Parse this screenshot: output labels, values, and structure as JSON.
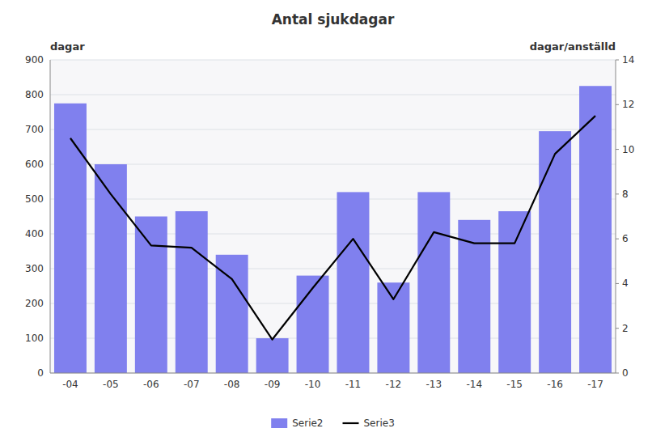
{
  "chart_data": {
    "type": "bar",
    "title": "Antal sjukdagar",
    "categories": [
      "-04",
      "-05",
      "-06",
      "-07",
      "-08",
      "-09",
      "-10",
      "-11",
      "-12",
      "-13",
      "-14",
      "-15",
      "-16",
      "-17"
    ],
    "series": [
      {
        "name": "Serie2",
        "type": "bar",
        "color": "#8080EE",
        "values": [
          775,
          600,
          450,
          465,
          340,
          100,
          280,
          520,
          260,
          520,
          440,
          465,
          695,
          825
        ]
      },
      {
        "name": "Serie3",
        "type": "line",
        "color": "#000000",
        "axis": "y2",
        "values": [
          10.5,
          8.0,
          5.7,
          5.6,
          4.2,
          1.5,
          3.8,
          6.0,
          3.3,
          6.3,
          5.8,
          5.8,
          9.8,
          11.5
        ]
      }
    ],
    "ylabel": "dagar",
    "y2label": "dagar/anställd",
    "ylim": [
      0,
      900
    ],
    "yticks": [
      0,
      100,
      200,
      300,
      400,
      500,
      600,
      700,
      800,
      900
    ],
    "y2lim": [
      0,
      14
    ],
    "y2ticks": [
      0,
      2,
      4,
      6,
      8,
      10,
      12,
      14
    ],
    "grid": true,
    "legend": "bottom"
  }
}
